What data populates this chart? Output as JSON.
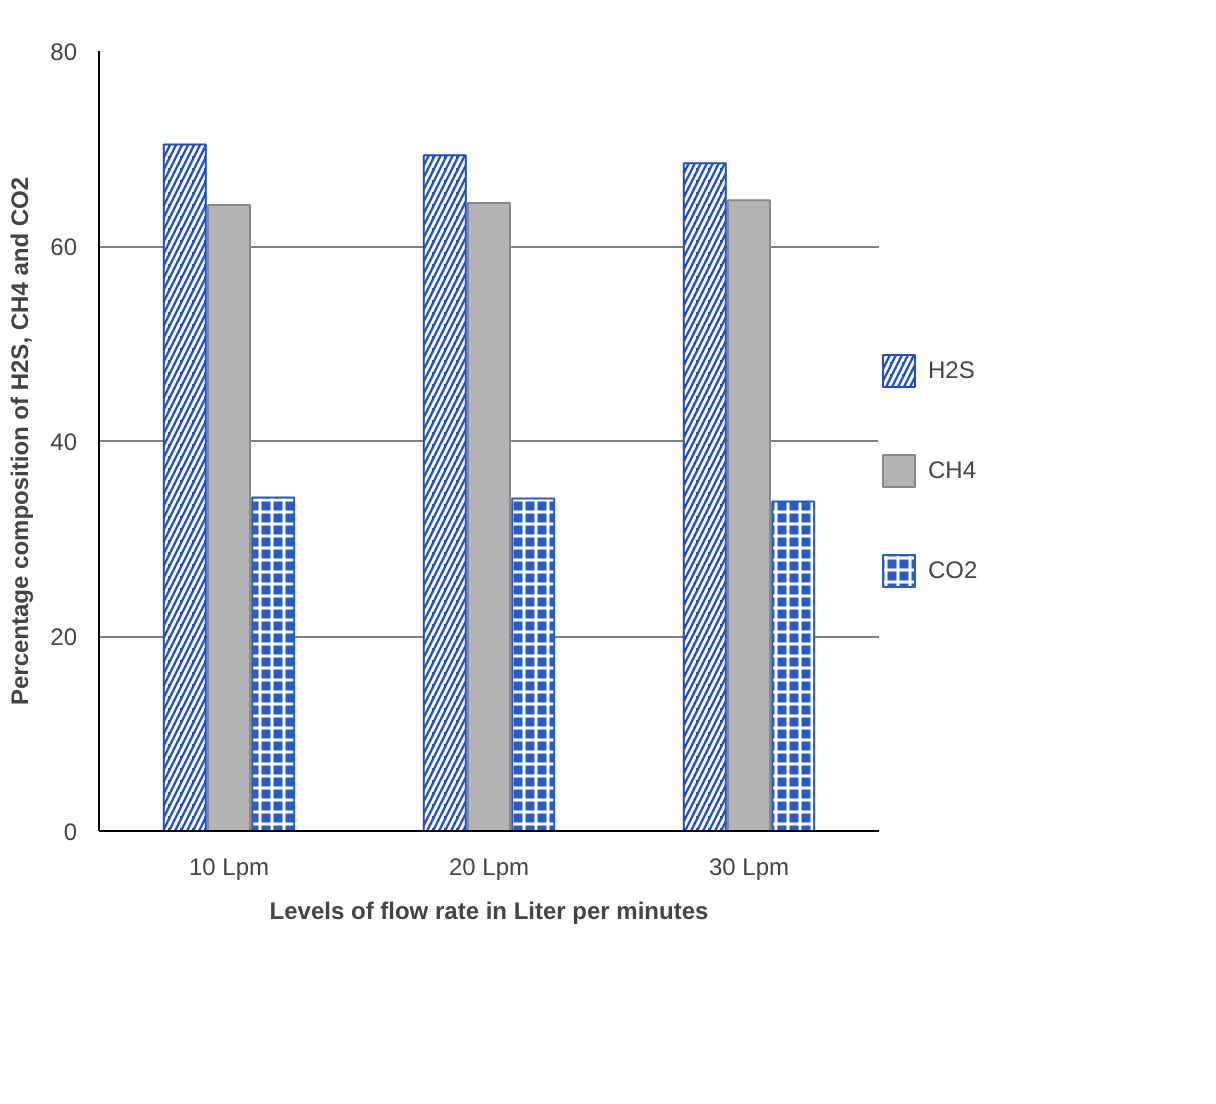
{
  "chart_data": {
    "type": "bar",
    "xlabel": "Levels of flow rate in Liter per minutes",
    "ylabel": "Percentage composition of H2S, CH4 and CO2",
    "categories": [
      "10 Lpm",
      "20 Lpm",
      "30 Lpm"
    ],
    "series": [
      {
        "name": "H2S",
        "color": "#1f4fc4",
        "values": [
          70.4,
          69.3,
          68.5
        ]
      },
      {
        "name": "CH4",
        "color": "#b4b4b4",
        "values": [
          64.2,
          64.4,
          64.7
        ]
      },
      {
        "name": "CO2",
        "color": "#2a5cc8",
        "values": [
          34.2,
          34.1,
          33.8
        ]
      }
    ],
    "ylim": [
      0,
      80
    ],
    "yticks": [
      0,
      20,
      40,
      60,
      80
    ],
    "grid": "y",
    "legend": "right"
  }
}
